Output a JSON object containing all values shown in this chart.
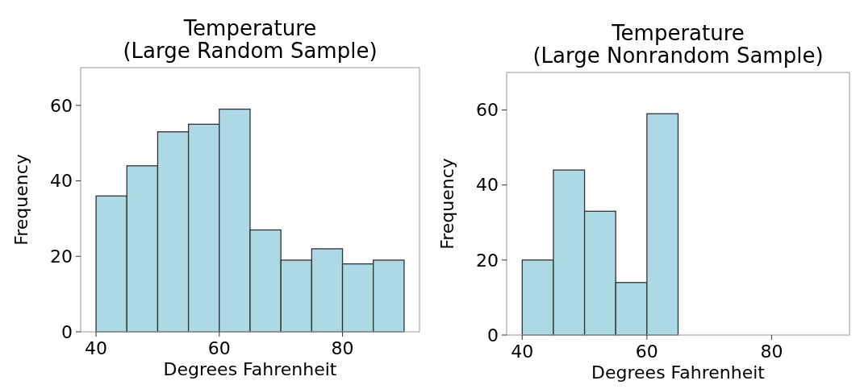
{
  "chart_data": [
    {
      "type": "histogram",
      "title": "Temperature\n(Large Random Sample)",
      "xlabel": "Degrees Fahrenheit",
      "ylabel": "Frequency",
      "bins": [
        40,
        45,
        50,
        55,
        60,
        65,
        70,
        75,
        80,
        85,
        90
      ],
      "values": [
        36,
        44,
        53,
        55,
        59,
        27,
        19,
        22,
        18,
        19
      ],
      "color": "#add8e6",
      "xlim": [
        37.5,
        92.5
      ],
      "ylim": [
        0,
        70
      ],
      "xticks": [
        40,
        60,
        80
      ],
      "yticks": [
        0,
        20,
        40,
        60
      ],
      "grid": false
    },
    {
      "type": "histogram",
      "title": "Temperature\n(Large Nonrandom Sample)",
      "xlabel": "Degrees Fahrenheit",
      "ylabel": "Frequency",
      "bins": [
        40,
        45,
        50,
        55,
        60,
        65,
        70,
        75,
        80,
        85,
        90
      ],
      "values": [
        20,
        44,
        33,
        14,
        59,
        0,
        0,
        0,
        0,
        0
      ],
      "color": "#add8e6",
      "xlim": [
        37.5,
        92.5
      ],
      "ylim": [
        0,
        70
      ],
      "xticks": [
        40,
        60,
        80
      ],
      "yticks": [
        0,
        20,
        40,
        60
      ],
      "grid": false
    }
  ]
}
